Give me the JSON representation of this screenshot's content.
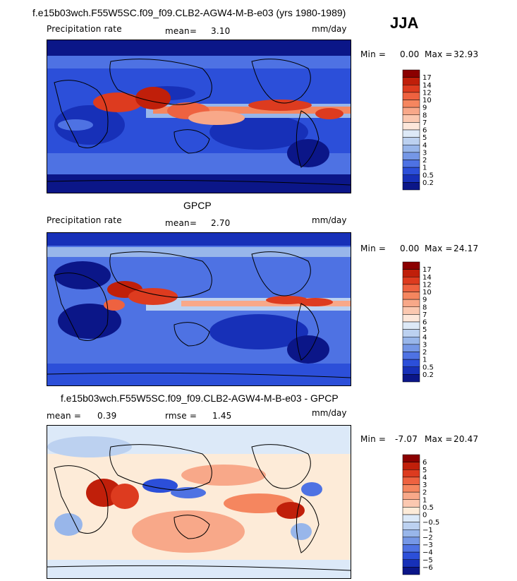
{
  "page": {
    "season": "JJA"
  },
  "panels": [
    {
      "title": "f.e15b03wch.F55W5SC.f09_f09.CLB2-AGW4-M-B-e03 (yrs 1980-1989)",
      "left_label": "Precipitation rate",
      "mean_label": "mean=",
      "mean_value": "3.10",
      "rmse_label": "",
      "rmse_value": "",
      "units": "mm/day",
      "min_label": "Min =",
      "min_value": "0.00",
      "max_label": "Max =",
      "max_value": "32.93",
      "kind": "precip"
    },
    {
      "title": "GPCP",
      "left_label": "Precipitation rate",
      "mean_label": "mean=",
      "mean_value": "2.70",
      "rmse_label": "",
      "rmse_value": "",
      "units": "mm/day",
      "min_label": "Min =",
      "min_value": "0.00",
      "max_label": "Max =",
      "max_value": "24.17",
      "kind": "precip"
    },
    {
      "title": "f.e15b03wch.F55W5SC.f09_f09.CLB2-AGW4-M-B-e03 - GPCP",
      "left_label": "",
      "mean_label": "mean =",
      "mean_value": "0.39",
      "rmse_label": "rmse =",
      "rmse_value": "1.45",
      "units": "mm/day",
      "min_label": "Min =",
      "min_value": "-7.07",
      "max_label": "Max =",
      "max_value": "20.47",
      "kind": "diff"
    }
  ],
  "colorbars": {
    "precip": {
      "levels": [
        "17",
        "14",
        "12",
        "10",
        "9",
        "8",
        "7",
        "6",
        "5",
        "4",
        "3",
        "2",
        "1",
        "0.5",
        "0.2"
      ],
      "colors": [
        "#8b0000",
        "#c01f0a",
        "#dd3b1f",
        "#ee6240",
        "#f5865f",
        "#f8a889",
        "#fbc8b0",
        "#fde7da",
        "#dde9f7",
        "#bcd1f0",
        "#98b6ea",
        "#7597e6",
        "#4e72e3",
        "#2c4fd9",
        "#1730b8",
        "#0b1688"
      ]
    },
    "diff": {
      "levels": [
        "6",
        "5",
        "4",
        "3",
        "2",
        "1",
        "0.5",
        "0",
        "-0.5",
        "-1",
        "-2",
        "-3",
        "-4",
        "-5",
        "-6"
      ],
      "colors": [
        "#8b0000",
        "#c01f0a",
        "#dd3b1f",
        "#ee6240",
        "#f5865f",
        "#f8a889",
        "#fbc8b0",
        "#fdebd8",
        "#dce9f8",
        "#bcd1f0",
        "#98b6ea",
        "#7597e6",
        "#4e72e3",
        "#2c4fd9",
        "#1730b8",
        "#0b1688"
      ]
    }
  },
  "chart_data": [
    {
      "type": "heatmap",
      "title": "f.e15b03wch.F55W5SC.f09_f09.CLB2-AGW4-M-B-e03 (yrs 1980-1989)",
      "variable": "Precipitation rate",
      "units": "mm/day",
      "season": "JJA",
      "mean": 3.1,
      "min": 0.0,
      "max": 32.93,
      "contour_levels": [
        0.2,
        0.5,
        1,
        2,
        3,
        4,
        5,
        6,
        7,
        8,
        9,
        10,
        12,
        14,
        17
      ]
    },
    {
      "type": "heatmap",
      "title": "GPCP",
      "variable": "Precipitation rate",
      "units": "mm/day",
      "season": "JJA",
      "mean": 2.7,
      "min": 0.0,
      "max": 24.17,
      "contour_levels": [
        0.2,
        0.5,
        1,
        2,
        3,
        4,
        5,
        6,
        7,
        8,
        9,
        10,
        12,
        14,
        17
      ]
    },
    {
      "type": "heatmap",
      "title": "f.e15b03wch.F55W5SC.f09_f09.CLB2-AGW4-M-B-e03 - GPCP",
      "units": "mm/day",
      "season": "JJA",
      "mean": 0.39,
      "rmse": 1.45,
      "min": -7.07,
      "max": 20.47,
      "contour_levels": [
        -6,
        -5,
        -4,
        -3,
        -2,
        -1,
        -0.5,
        0,
        0.5,
        1,
        2,
        3,
        4,
        5,
        6
      ]
    }
  ]
}
